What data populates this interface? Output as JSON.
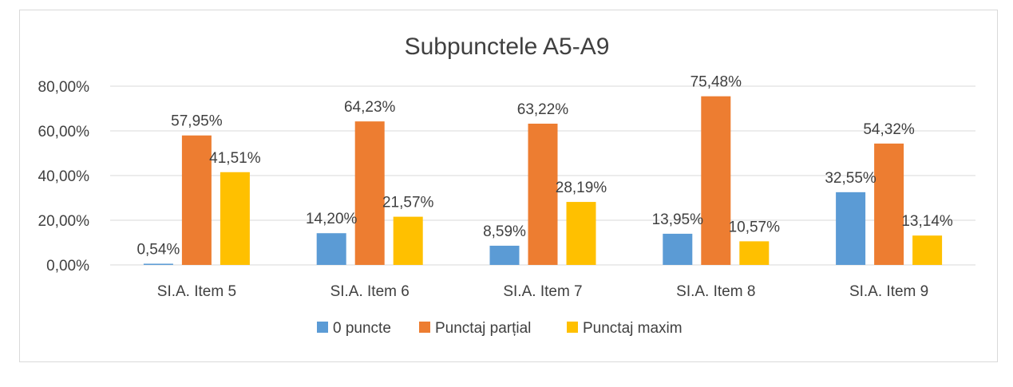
{
  "chart_data": {
    "type": "bar",
    "title": "Subpunctele A5-A9",
    "categories": [
      "SI.A. Item 5",
      "SI.A. Item 6",
      "SI.A. Item 7",
      "SI.A. Item 8",
      "SI.A. Item 9"
    ],
    "series": [
      {
        "name": "0 puncte",
        "color": "#5b9bd5",
        "values": [
          0.54,
          14.2,
          8.59,
          13.95,
          32.55
        ],
        "labels": [
          "0,54%",
          "14,20%",
          "8,59%",
          "13,95%",
          "32,55%"
        ]
      },
      {
        "name": "Punctaj parțial",
        "color": "#ed7d31",
        "values": [
          57.95,
          64.23,
          63.22,
          75.48,
          54.32
        ],
        "labels": [
          "57,95%",
          "64,23%",
          "63,22%",
          "75,48%",
          "54,32%"
        ]
      },
      {
        "name": "Punctaj maxim",
        "color": "#ffc000",
        "values": [
          41.51,
          21.57,
          28.19,
          10.57,
          13.14
        ],
        "labels": [
          "41,51%",
          "21,57%",
          "28,19%",
          "10,57%",
          "13,14%"
        ]
      }
    ],
    "ylim": [
      0,
      80
    ],
    "yticks": [
      0,
      20,
      40,
      60,
      80
    ],
    "ytick_labels": [
      "0,00%",
      "20,00%",
      "40,00%",
      "60,00%",
      "80,00%"
    ],
    "xlabel": "",
    "ylabel": "",
    "grid": true,
    "legend_position": "bottom"
  }
}
